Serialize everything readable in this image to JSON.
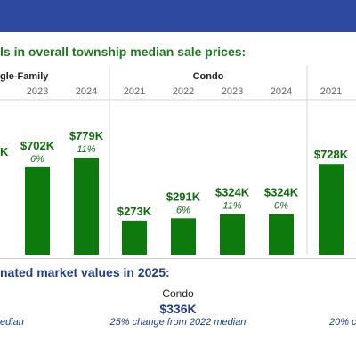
{
  "heading": {
    "visible_text": "ls in overall township median sale prices:",
    "color": "#1f7a1f"
  },
  "bottom_heading": "nated market values in 2025:",
  "bottom": {
    "label": "Condo",
    "value": "$336K",
    "left_note": "edian",
    "center_note": "25% change from 2022 median",
    "right_note": "20% c"
  },
  "colors": {
    "bar": "#0e7a0e",
    "title_bar": "#2e4aa0",
    "value_label": "#0e6b0e",
    "change_label": "#0e6b0e"
  },
  "chart_data": [
    {
      "type": "bar",
      "title": "gle-Family",
      "categories": [
        "2023",
        "2024"
      ],
      "values": [
        702,
        779
      ],
      "value_labels": [
        "$702K",
        "$779K"
      ],
      "change_labels": [
        "6%",
        "11%"
      ],
      "clipped_left_label": "K"
    },
    {
      "type": "bar",
      "title": "Condo",
      "categories": [
        "2021",
        "2022",
        "2023",
        "2024"
      ],
      "values": [
        273,
        291,
        324,
        324
      ],
      "value_labels": [
        "$273K",
        "$291K",
        "$324K",
        "$324K"
      ],
      "change_labels": [
        "",
        "6%",
        "11%",
        "0%"
      ]
    },
    {
      "type": "bar",
      "title": "",
      "categories": [
        "2021"
      ],
      "values": [
        728
      ],
      "value_labels": [
        "$728K"
      ],
      "change_labels": [
        ""
      ]
    }
  ]
}
